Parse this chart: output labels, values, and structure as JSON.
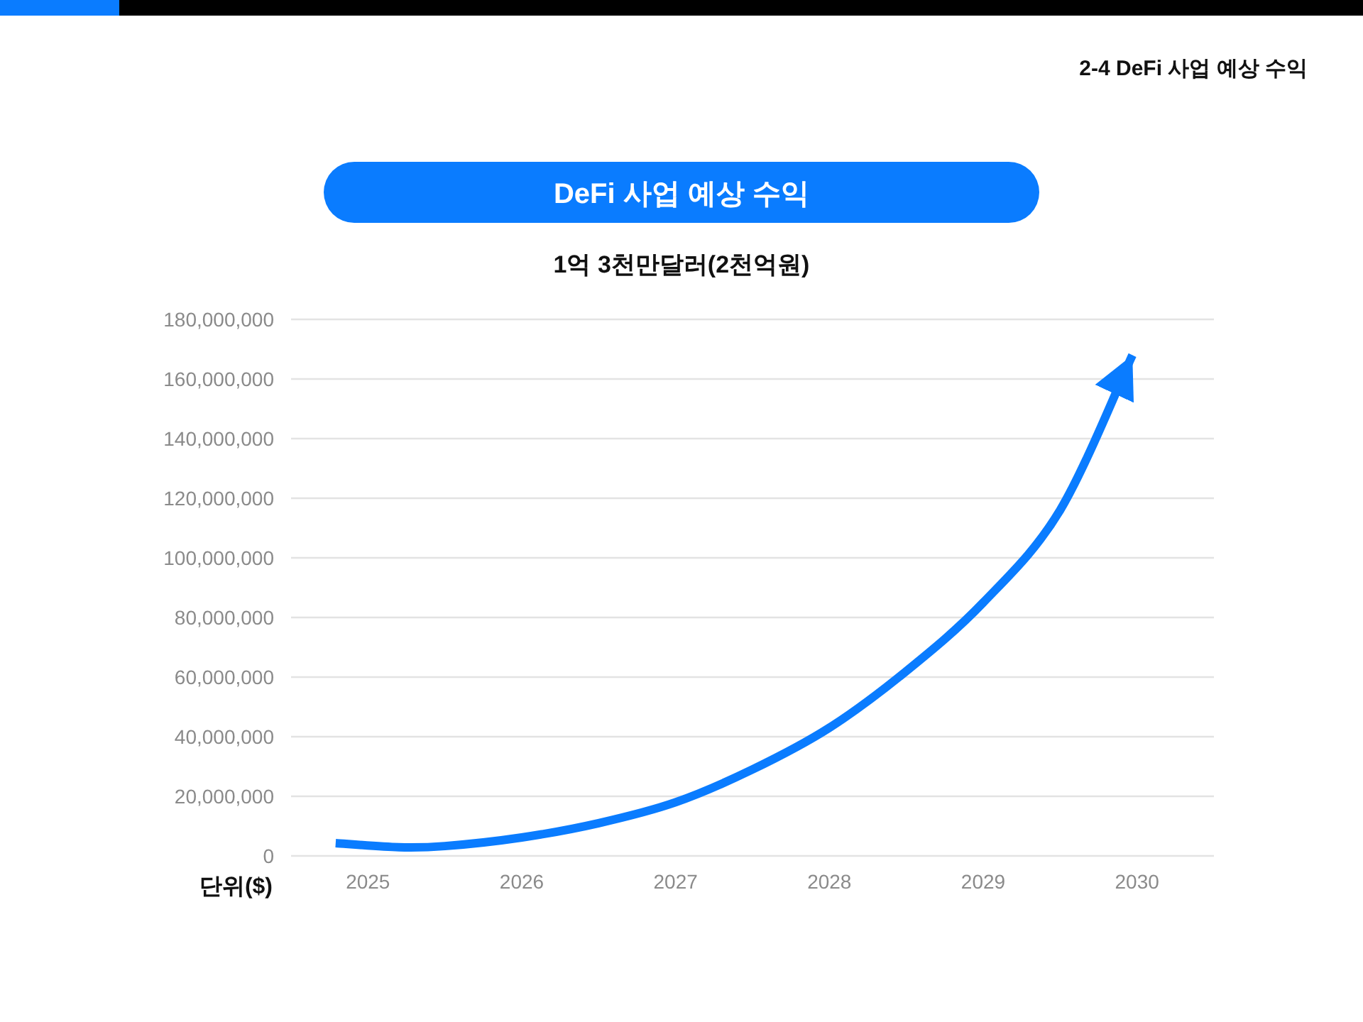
{
  "chart_data": {
    "type": "line",
    "title": "DeFi 사업 예상 수익",
    "subtitle": "1억 3천만달러(2천억원)",
    "annotations": [
      "2-4 DeFi 사업 예상 수익",
      "단위($)"
    ],
    "series": [
      {
        "color": "#0a7cff",
        "x": [
          2024.79,
          2025.2,
          2025.5,
          2026,
          2026.5,
          2027,
          2027.5,
          2028,
          2028.5,
          2029,
          2029.5,
          2029.97
        ],
        "values": [
          4300000,
          2900000,
          3300000,
          6200000,
          11000000,
          18000000,
          29000000,
          43000000,
          62000000,
          85000000,
          116000000,
          168000000
        ]
      }
    ],
    "xlim": [
      2024.5,
      2030.5
    ],
    "xticks": [
      2025,
      2026,
      2027,
      2028,
      2029,
      2030
    ],
    "ylim": [
      0,
      180000000
    ],
    "yticks": [
      0,
      {
        "value": 20000000,
        "label": "20,000,000"
      },
      {
        "value": 40000000,
        "label": "40,000,000"
      },
      {
        "value": 60000000,
        "label": "60,000,000"
      },
      {
        "value": 80000000,
        "label": "80,000,000"
      },
      {
        "value": 100000000,
        "label": "100,000,000"
      },
      {
        "value": 120000000,
        "label": "120,000,000"
      },
      {
        "value": 140000000,
        "label": "140,000,000"
      },
      {
        "value": 160000000,
        "label": "160,000,000"
      },
      {
        "value": 180000000,
        "label": "180,000,000"
      }
    ],
    "grid": "y",
    "marker": "none",
    "line_style": "solid"
  }
}
